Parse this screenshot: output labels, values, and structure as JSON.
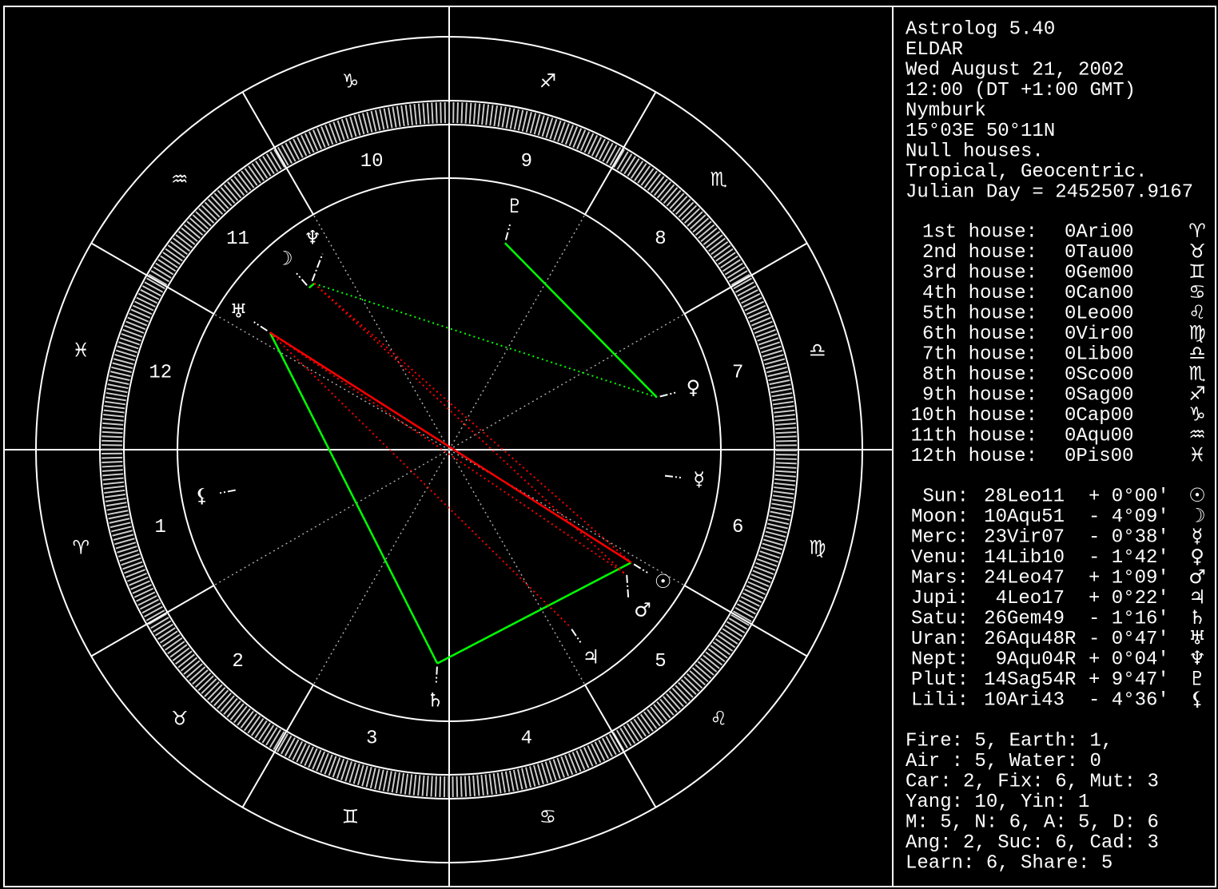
{
  "header": [
    "Astrolog 5.40",
    "ELDAR",
    "Wed August 21, 2002",
    "12:00 (DT +1:00 GMT)",
    "Nymburk",
    " 15°03E 50°11N",
    "Null houses.",
    "Tropical, Geocentric.",
    "Julian Day = 2452507.9167"
  ],
  "houses": [
    {
      "label": "1st house:",
      "position": "0Ari00",
      "glyph": "♈",
      "color": "#ff0000"
    },
    {
      "label": "2nd house:",
      "position": "0Tau00",
      "glyph": "♉",
      "color": "#00ff00"
    },
    {
      "label": "3rd house:",
      "position": "0Gem00",
      "glyph": "♊",
      "color": "#ffff00"
    },
    {
      "label": "4th house:",
      "position": "0Can00",
      "glyph": "♋",
      "color": "#0000ff"
    },
    {
      "label": "5th house:",
      "position": "0Leo00",
      "glyph": "♌",
      "color": "#ff0000"
    },
    {
      "label": "6th house:",
      "position": "0Vir00",
      "glyph": "♍",
      "color": "#00ff00"
    },
    {
      "label": "7th house:",
      "position": "0Lib00",
      "glyph": "♎",
      "color": "#ffff00"
    },
    {
      "label": "8th house:",
      "position": "0Sco00",
      "glyph": "♏",
      "color": "#0000ff"
    },
    {
      "label": "9th house:",
      "position": "0Sag00",
      "glyph": "♐",
      "color": "#ff0000"
    },
    {
      "label": "10th house:",
      "position": "0Cap00",
      "glyph": "♑",
      "color": "#00ff00"
    },
    {
      "label": "11th house:",
      "position": "0Aqu00",
      "glyph": "♒",
      "color": "#ffff00"
    },
    {
      "label": "12th house:",
      "position": "0Pis00",
      "glyph": "♓",
      "color": "#0000ff"
    }
  ],
  "house_numbers": [
    "1",
    "2",
    "3",
    "4",
    "5",
    "6",
    "7",
    "8",
    "9",
    "10",
    "11",
    "12"
  ],
  "planets": [
    {
      "name": "Sun:",
      "color": "#ff0000",
      "position": "28Leo11",
      "position_color": "#ff0000",
      "latitude": "+ 0°00'",
      "glyph": "☉"
    },
    {
      "name": "Moon:",
      "color": "#0000ff",
      "position": "10Aqu51",
      "position_color": "#ffff00",
      "latitude": "- 4°09'",
      "glyph": "☽"
    },
    {
      "name": "Merc:",
      "color": "#ffff00",
      "position": "23Vir07",
      "position_color": "#00ff00",
      "latitude": "- 0°38'",
      "glyph": "☿"
    },
    {
      "name": "Venu:",
      "color": "#ffff00",
      "position": "14Lib10",
      "position_color": "#ffff00",
      "latitude": "- 1°42'",
      "glyph": "♀"
    },
    {
      "name": "Mars:",
      "color": "#ff0000",
      "position": "24Leo47",
      "position_color": "#ff0000",
      "latitude": "+ 1°09'",
      "glyph": "♂"
    },
    {
      "name": "Jupi:",
      "color": "#ff0000",
      "position": "4Leo17",
      "position_color": "#ff0000",
      "latitude": "+ 0°22'",
      "glyph": "♃"
    },
    {
      "name": "Satu:",
      "color": "#00ff00",
      "position": "26Gem49",
      "position_color": "#ffff00",
      "latitude": "- 1°16'",
      "glyph": "♄"
    },
    {
      "name": "Uran:",
      "color": "#ffff00",
      "position": "26Aqu48",
      "retrograde": "R",
      "position_color": "#ffff00",
      "latitude": "- 0°47'",
      "glyph": "♅"
    },
    {
      "name": "Nept:",
      "color": "#0000ff",
      "position": "9Aqu04",
      "retrograde": "R",
      "position_color": "#ffff00",
      "latitude": "+ 0°04'",
      "glyph": "♆"
    },
    {
      "name": "Plut:",
      "color": "#0000ff",
      "position": "14Sag54",
      "retrograde": "R",
      "position_color": "#ff0000",
      "latitude": "+ 9°47'",
      "glyph": "♇"
    },
    {
      "name": "Lili:",
      "color": "#008080",
      "position": "10Ari43",
      "position_color": "#ff0000",
      "latitude": "- 4°36'",
      "glyph": "⚸"
    }
  ],
  "summary": [
    "Fire: 5, Earth: 1,",
    "Air : 5, Water: 0",
    "Car: 2, Fix: 6, Mut: 3",
    "Yang: 10, Yin: 1",
    "M: 5, N: 6, A: 5, D: 6",
    "Ang: 2, Suc: 6, Cad: 3",
    "Learn: 6, Share: 5"
  ]
}
